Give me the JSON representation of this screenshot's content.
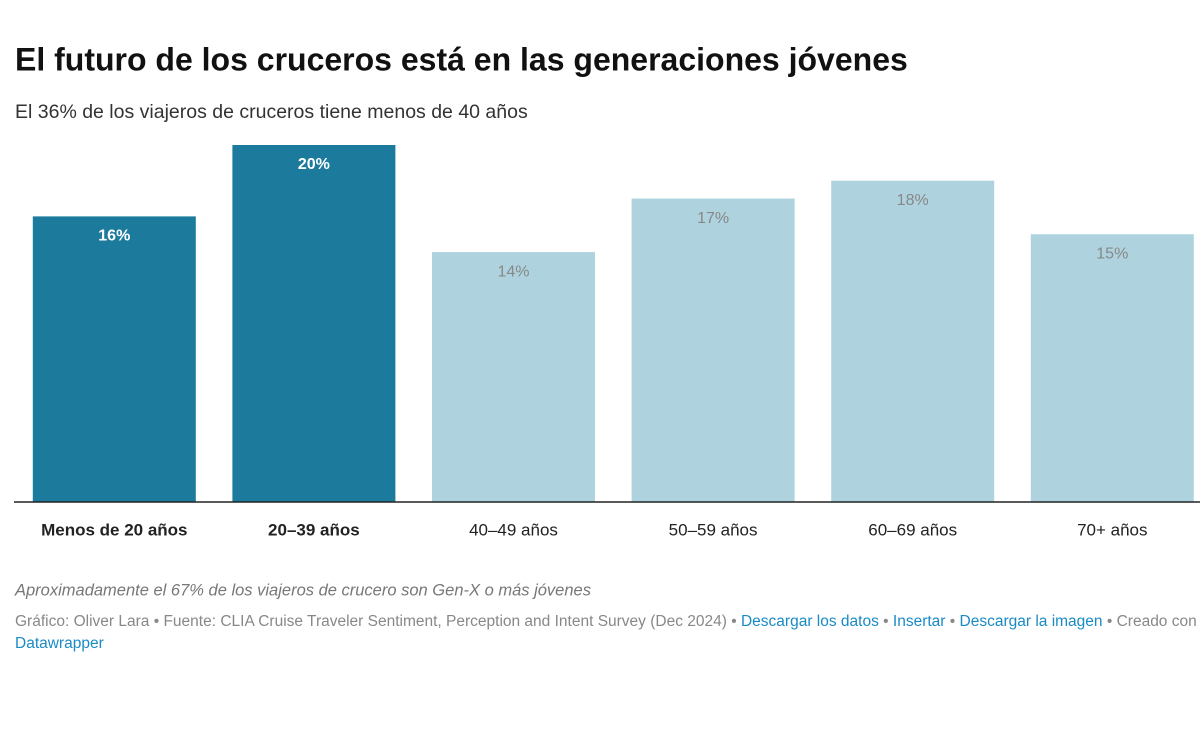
{
  "chart_data": {
    "type": "bar",
    "title": "El futuro de los cruceros está en las generaciones jóvenes",
    "subtitle": "El 36% de los viajeros de cruceros tiene menos de 40 años",
    "categories": [
      "Menos de 20 años",
      "20–39 años",
      "40–49 años",
      "50–59 años",
      "60–69 años",
      "70+ años"
    ],
    "values": [
      16,
      20,
      14,
      17,
      18,
      15
    ],
    "value_labels": [
      "16%",
      "20%",
      "14%",
      "17%",
      "18%",
      "15%"
    ],
    "colors": [
      "#1c7a9c",
      "#1c7a9c",
      "#aed3df",
      "#aed3df",
      "#aed3df",
      "#aed3df"
    ],
    "highlighted": [
      true,
      true,
      false,
      false,
      false,
      false
    ],
    "ylim": [
      0,
      20
    ],
    "note": "Aproximadamente el 67% de los viajeros de crucero son Gen-X o más jóvenes",
    "byline": "Gráfico: Oliver Lara",
    "source": "Fuente: CLIA Cruise Traveler Sentiment, Perception and Intent Survey (Dec 2024)",
    "separator": "•",
    "links": [
      "Descargar los datos",
      "Insertar",
      "Descargar la imagen"
    ],
    "credit": "Creado con",
    "credit_link": "Datawrapper"
  }
}
